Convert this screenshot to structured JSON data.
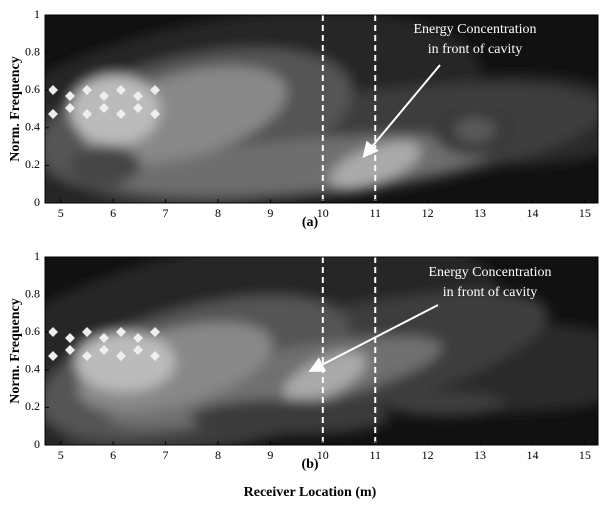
{
  "chart_data": [
    {
      "type": "contour",
      "caption": "(a)",
      "ylabel": "Norm. Frequency",
      "xlim": [
        4.7,
        15.25
      ],
      "ylim": [
        0,
        1
      ],
      "xticks": [
        5,
        6,
        7,
        8,
        9,
        10,
        11,
        12,
        13,
        14,
        15
      ],
      "yticks": [
        0,
        0.2,
        0.4,
        0.6,
        0.8,
        1
      ],
      "vlines": [
        10,
        11
      ],
      "annotation": [
        "Energy Concentration",
        "in front of cavity"
      ]
    },
    {
      "type": "contour",
      "caption": "(b)",
      "ylabel": "Norm. Frequency",
      "xlabel": "Receiver Location (m)",
      "xlim": [
        4.7,
        15.25
      ],
      "ylim": [
        0,
        1
      ],
      "xticks": [
        5,
        6,
        7,
        8,
        9,
        10,
        11,
        12,
        13,
        14,
        15
      ],
      "yticks": [
        0,
        0.2,
        0.4,
        0.6,
        0.8,
        1
      ],
      "vlines": [
        10,
        11
      ],
      "annotation": [
        "Energy Concentration",
        "in front of cavity"
      ]
    }
  ]
}
